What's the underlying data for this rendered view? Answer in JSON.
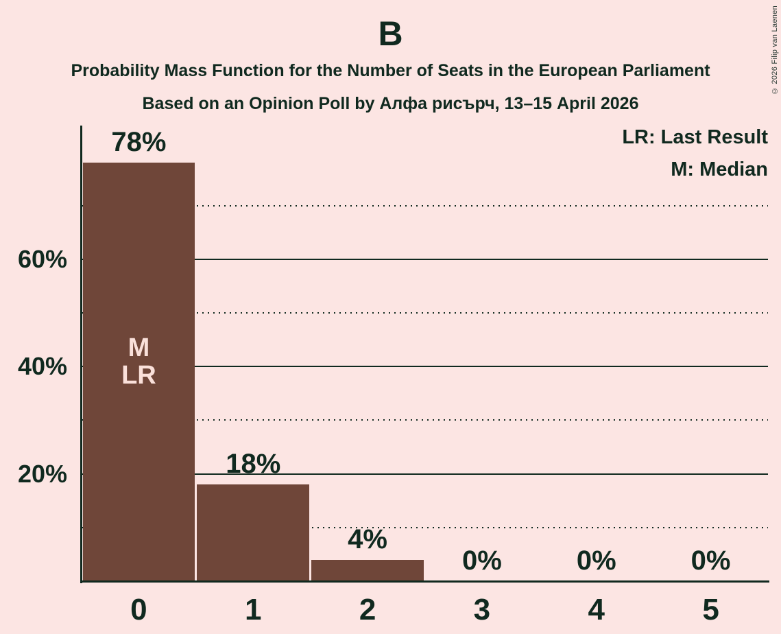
{
  "page": {
    "title": "B",
    "subtitle": "Probability Mass Function for the Number of Seats in the European Parliament",
    "poll_line": "Based on an Opinion Poll by Алфа рисърч, 13–15 April 2026",
    "copyright": "© 2026 Filip van Laenen"
  },
  "legend": {
    "last_result": "LR: Last Result",
    "median": "M: Median"
  },
  "colors": {
    "background": "#fce5e3",
    "bar": "#6f4639",
    "text": "#10291f",
    "bar_annotation_text": "#fae0da"
  },
  "chart_data": {
    "type": "bar",
    "title": "B",
    "subtitle": "Probability Mass Function for the Number of Seats in the European Parliament",
    "poll_line": "Based on an Opinion Poll by Алфа рисърч, 13–15 April 2026",
    "categories": [
      "0",
      "1",
      "2",
      "3",
      "4",
      "5"
    ],
    "values": [
      78,
      18,
      4,
      0,
      0,
      0
    ],
    "value_labels": [
      "78%",
      "18%",
      "4%",
      "0%",
      "0%",
      "0%"
    ],
    "ylim": [
      0,
      85
    ],
    "yticks": [
      {
        "value": 20,
        "label": "20%"
      },
      {
        "value": 40,
        "label": "40%"
      },
      {
        "value": 60,
        "label": "60%"
      }
    ],
    "major_gridlines": [
      20,
      40,
      60
    ],
    "minor_gridlines": [
      10,
      30,
      50,
      70
    ],
    "grid": true,
    "legend_entries": [
      "LR: Last Result",
      "M: Median"
    ],
    "legend_position": "top-right",
    "annotations": [
      {
        "category_index": 0,
        "lines": [
          "M",
          "LR"
        ]
      }
    ]
  }
}
